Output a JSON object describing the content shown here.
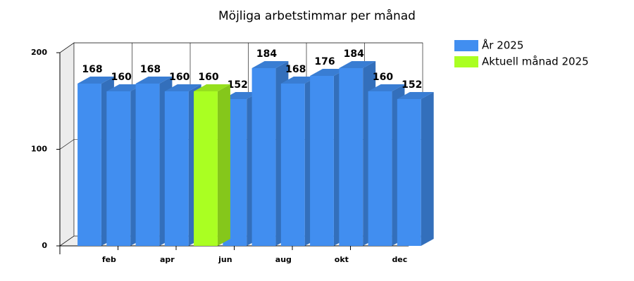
{
  "chart_data": {
    "type": "bar3d",
    "title": "Möjliga arbetstimmar per månad",
    "categories": [
      null,
      "feb",
      null,
      "apr",
      null,
      "jun",
      null,
      "aug",
      null,
      "okt",
      null,
      "dec"
    ],
    "series": [
      {
        "name": "År 2025",
        "color": "#418ef0",
        "values": [
          168,
          160,
          168,
          160,
          null,
          152,
          184,
          168,
          176,
          184,
          160,
          152
        ]
      },
      {
        "name": "Aktuell månad 2025",
        "color": "#aaff22",
        "values": [
          null,
          null,
          null,
          null,
          160,
          null,
          null,
          null,
          null,
          null,
          null,
          null
        ]
      }
    ],
    "ylim": [
      0,
      200
    ],
    "yticks": [
      0,
      100,
      200
    ],
    "grid": true,
    "legend": "right"
  }
}
